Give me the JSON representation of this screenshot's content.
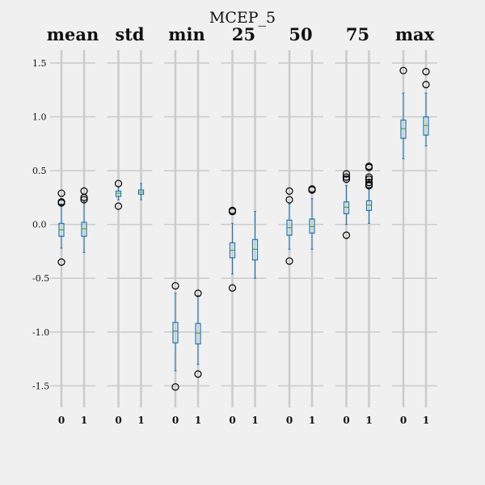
{
  "chart_data": {
    "type": "box",
    "title": "MCEP_5",
    "ylim": [
      -1.7,
      1.62
    ],
    "yticks": [
      1.5,
      1.0,
      0.5,
      0.0,
      -0.5,
      -1.0,
      -1.5
    ],
    "ytick_labels": [
      "1.5",
      "1.0",
      "0.5",
      "0.0",
      "-0.5",
      "-1.0",
      "-1.5"
    ],
    "grid": true,
    "colors": {
      "background": "#f0f0f0",
      "grid": "#cbcbcb",
      "box": "#1f77b4",
      "median": "#2ca02c",
      "flier": "#000000"
    },
    "panels": [
      {
        "name": "mean",
        "boxes": [
          {
            "label": "0",
            "whislo": -0.22,
            "q1": -0.11,
            "med": -0.05,
            "q3": 0.01,
            "whishi": 0.19,
            "fliers": [
              0.29,
              0.21,
              0.2,
              -0.35
            ]
          },
          {
            "label": "1",
            "whislo": -0.26,
            "q1": -0.11,
            "med": -0.04,
            "q3": 0.02,
            "whishi": 0.21,
            "fliers": [
              0.31,
              0.25,
              0.23
            ]
          }
        ]
      },
      {
        "name": "std",
        "boxes": [
          {
            "label": "0",
            "whislo": 0.23,
            "q1": 0.26,
            "med": 0.29,
            "q3": 0.31,
            "whishi": 0.35,
            "fliers": [
              0.38,
              0.17
            ]
          },
          {
            "label": "1",
            "whislo": 0.23,
            "q1": 0.28,
            "med": 0.3,
            "q3": 0.32,
            "whishi": 0.38,
            "fliers": []
          }
        ]
      },
      {
        "name": "min",
        "boxes": [
          {
            "label": "0",
            "whislo": -1.36,
            "q1": -1.1,
            "med": -0.99,
            "q3": -0.91,
            "whishi": -0.64,
            "fliers": [
              -0.57,
              -1.51
            ]
          },
          {
            "label": "1",
            "whislo": -1.3,
            "q1": -1.11,
            "med": -1.01,
            "q3": -0.92,
            "whishi": -0.66,
            "fliers": [
              -0.64,
              -1.39
            ]
          }
        ]
      },
      {
        "name": "25",
        "boxes": [
          {
            "label": "0",
            "whislo": -0.46,
            "q1": -0.31,
            "med": -0.24,
            "q3": -0.17,
            "whishi": 0.01,
            "fliers": [
              0.13,
              0.12,
              -0.59
            ]
          },
          {
            "label": "1",
            "whislo": -0.5,
            "q1": -0.33,
            "med": -0.23,
            "q3": -0.14,
            "whishi": 0.12,
            "fliers": []
          }
        ]
      },
      {
        "name": "50",
        "boxes": [
          {
            "label": "0",
            "whislo": -0.23,
            "q1": -0.1,
            "med": -0.03,
            "q3": 0.04,
            "whishi": 0.19,
            "fliers": [
              0.31,
              0.23,
              -0.34
            ]
          },
          {
            "label": "1",
            "whislo": -0.23,
            "q1": -0.08,
            "med": -0.02,
            "q3": 0.05,
            "whishi": 0.24,
            "fliers": [
              0.33,
              0.32
            ]
          }
        ]
      },
      {
        "name": "75",
        "boxes": [
          {
            "label": "0",
            "whislo": 0.0,
            "q1": 0.1,
            "med": 0.16,
            "q3": 0.21,
            "whishi": 0.36,
            "fliers": [
              0.47,
              0.44,
              0.42,
              -0.1
            ]
          },
          {
            "label": "1",
            "whislo": 0.01,
            "q1": 0.13,
            "med": 0.18,
            "q3": 0.22,
            "whishi": 0.34,
            "fliers": [
              0.54,
              0.53,
              0.44,
              0.42,
              0.39,
              0.37,
              0.36
            ]
          }
        ]
      },
      {
        "name": "max",
        "boxes": [
          {
            "label": "0",
            "whislo": 0.61,
            "q1": 0.8,
            "med": 0.89,
            "q3": 0.97,
            "whishi": 1.22,
            "fliers": [
              1.43
            ]
          },
          {
            "label": "1",
            "whislo": 0.73,
            "q1": 0.83,
            "med": 0.92,
            "q3": 1.0,
            "whishi": 1.22,
            "fliers": [
              1.42,
              1.3
            ]
          }
        ]
      }
    ]
  }
}
